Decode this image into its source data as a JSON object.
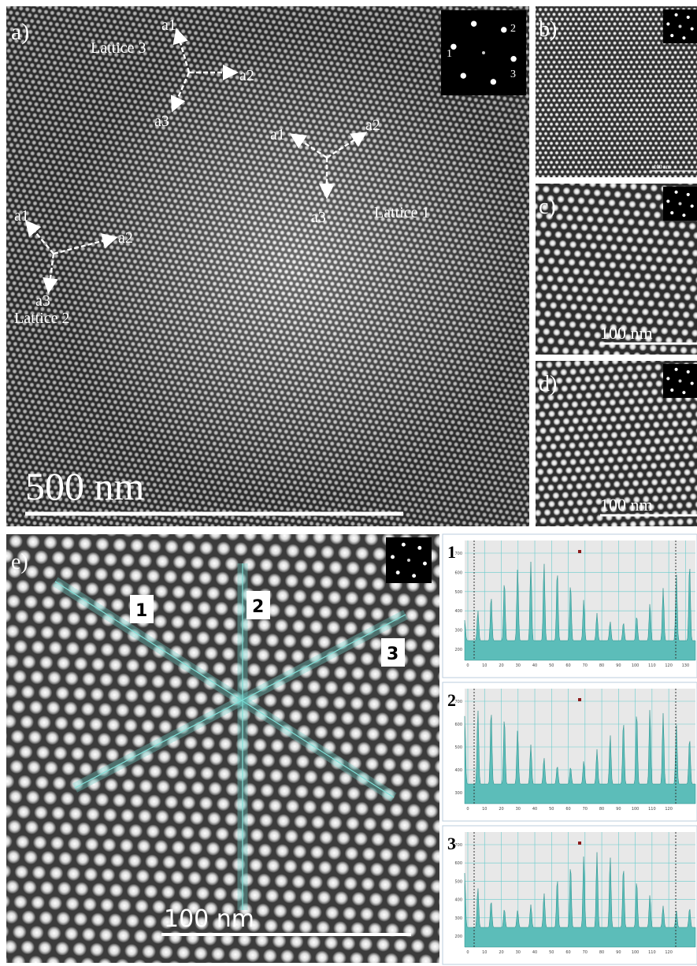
{
  "panels": {
    "a": {
      "label": "a)",
      "scale_bar": "500 nm",
      "fft_spots": [
        "1",
        "2",
        "3"
      ],
      "lattices": [
        {
          "name": "Lattice 3",
          "vectors": [
            "a1",
            "a2",
            "a3"
          ]
        },
        {
          "name": "Lattice 1",
          "vectors": [
            "a1",
            "a2",
            "a3"
          ]
        },
        {
          "name": "Lattice 2",
          "vectors": [
            "a1",
            "a2",
            "a3"
          ]
        }
      ]
    },
    "b": {
      "label": "b)",
      "scale_bar": "100 nm"
    },
    "c": {
      "label": "c)",
      "scale_bar": "100 nm"
    },
    "d": {
      "label": "d)",
      "scale_bar": "100 nm"
    },
    "e": {
      "label": "e)",
      "scale_bar": "100 nm",
      "lines": [
        "1",
        "2",
        "3"
      ]
    }
  },
  "profiles": [
    {
      "label": "1",
      "yticks": [
        700,
        600,
        500,
        400,
        300,
        200
      ],
      "xticks": [
        0,
        10,
        20,
        30,
        40,
        50,
        60,
        70,
        80,
        90,
        100,
        110,
        120,
        130
      ]
    },
    {
      "label": "2",
      "yticks": [
        700,
        600,
        500,
        400,
        300
      ],
      "xticks": [
        0,
        10,
        20,
        30,
        40,
        50,
        60,
        70,
        80,
        90,
        100,
        110,
        120
      ]
    },
    {
      "label": "3",
      "yticks": [
        700,
        600,
        500,
        400,
        300,
        200
      ],
      "xticks": [
        0,
        10,
        20,
        30,
        40,
        50,
        60,
        70,
        80,
        90,
        100,
        110,
        120
      ]
    }
  ]
}
